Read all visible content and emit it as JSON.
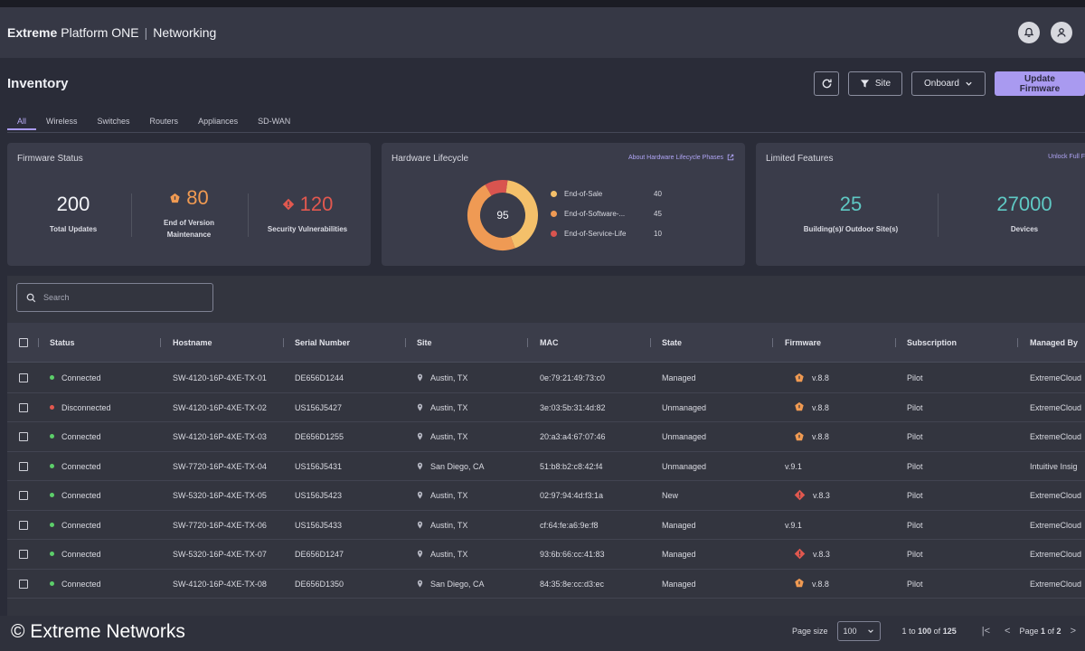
{
  "app": {
    "brand_bold": "Extreme",
    "brand_rest": "Platform ONE",
    "section": "Networking"
  },
  "page": {
    "title": "Inventory"
  },
  "toolbar": {
    "site_label": "Site",
    "onboard_label": "Onboard",
    "update_label": "Update Firmware"
  },
  "tabs": [
    "All",
    "Wireless",
    "Switches",
    "Routers",
    "Appliances",
    "SD-WAN"
  ],
  "firmware_status": {
    "title": "Firmware Status",
    "total_value": "200",
    "total_label": "Total Updates",
    "eovm_value": "80",
    "eovm_label_1": "End of Version",
    "eovm_label_2": "Maintenance",
    "vuln_value": "120",
    "vuln_label": "Security Vulnerabilities"
  },
  "hardware_lifecycle": {
    "title": "Hardware Lifecycle",
    "link": "About Hardware Lifecycle Phases",
    "center": "95",
    "items": [
      {
        "label": "End-of-Sale",
        "value": "40",
        "color": "#f4c06a"
      },
      {
        "label": "End-of-Software-...",
        "value": "45",
        "color": "#ef9a54"
      },
      {
        "label": "End-of-Service-Life",
        "value": "10",
        "color": "#d9544f"
      }
    ]
  },
  "limited_features": {
    "title": "Limited Features",
    "link": "Unlock Full F",
    "sites_value": "25",
    "sites_label": "Building(s)/ Outdoor Site(s)",
    "devices_value": "27000",
    "devices_label": "Devices"
  },
  "search": {
    "placeholder": "Search"
  },
  "columns": [
    "Status",
    "Hostname",
    "Serial Number",
    "Site",
    "MAC",
    "State",
    "Firmware",
    "Subscription",
    "Managed By"
  ],
  "colors": {
    "connected": "#5ccf6a",
    "disconnected": "#e2584f",
    "eovm": "#f09a52",
    "vuln": "#e2584f",
    "accent": "#a99af0"
  },
  "rows": [
    {
      "status": "Connected",
      "hostname": "SW-4120-16P-4XE-TX-01",
      "serial": "DE656D1244",
      "site": "Austin, TX",
      "mac": "0e:79:21:49:73:c0",
      "state": "Managed",
      "fw": "v.8.8",
      "fw_icon": "eovm-icon",
      "subscription": "Pilot",
      "managed": "ExtremeCloud"
    },
    {
      "status": "Disconnected",
      "hostname": "SW-4120-16P-4XE-TX-02",
      "serial": "US156J5427",
      "site": "Austin, TX",
      "mac": "3e:03:5b:31:4d:82",
      "state": "Unmanaged",
      "fw": "v.8.8",
      "fw_icon": "eovm-icon",
      "subscription": "Pilot",
      "managed": "ExtremeCloud"
    },
    {
      "status": "Connected",
      "hostname": "SW-4120-16P-4XE-TX-03",
      "serial": "DE656D1255",
      "site": "Austin, TX",
      "mac": "20:a3:a4:67:07:46",
      "state": "Unmanaged",
      "fw": "v.8.8",
      "fw_icon": "eovm-icon",
      "subscription": "Pilot",
      "managed": "ExtremeCloud"
    },
    {
      "status": "Connected",
      "hostname": "SW-7720-16P-4XE-TX-04",
      "serial": "US156J5431",
      "site": "San Diego, CA",
      "mac": "51:b8:b2:c8:42:f4",
      "state": "Unmanaged",
      "fw": "v.9.1",
      "fw_icon": "",
      "subscription": "Pilot",
      "managed": "Intuitive Insig"
    },
    {
      "status": "Connected",
      "hostname": "SW-5320-16P-4XE-TX-05",
      "serial": "US156J5423",
      "site": "Austin, TX",
      "mac": "02:97:94:4d:f3:1a",
      "state": "New",
      "fw": "v.8.3",
      "fw_icon": "vuln-icon",
      "subscription": "Pilot",
      "managed": "ExtremeCloud"
    },
    {
      "status": "Connected",
      "hostname": "SW-7720-16P-4XE-TX-06",
      "serial": "US156J5433",
      "site": "Austin, TX",
      "mac": "cf:64:fe:a6:9e:f8",
      "state": "Managed",
      "fw": "v.9.1",
      "fw_icon": "",
      "subscription": "Pilot",
      "managed": "ExtremeCloud"
    },
    {
      "status": "Connected",
      "hostname": "SW-5320-16P-4XE-TX-07",
      "serial": "DE656D1247",
      "site": "Austin, TX",
      "mac": "93:6b:66:cc:41:83",
      "state": "Managed",
      "fw": "v.8.3",
      "fw_icon": "vuln-icon",
      "subscription": "Pilot",
      "managed": "ExtremeCloud"
    },
    {
      "status": "Connected",
      "hostname": "SW-4120-16P-4XE-TX-08",
      "serial": "DE656D1350",
      "site": "San Diego, CA",
      "mac": "84:35:8e:cc:d3:ec",
      "state": "Managed",
      "fw": "v.8.8",
      "fw_icon": "eovm-icon",
      "subscription": "Pilot",
      "managed": "ExtremeCloud"
    }
  ],
  "footer": {
    "copyright": "© Extreme Networks",
    "page_size_label": "Page size",
    "page_size": "100",
    "range_from": "1",
    "range_to_word": "to",
    "range_to": "100",
    "range_of_word": "of",
    "total": "125",
    "page_word": "Page",
    "page_current": "1",
    "page_of_word": "of",
    "page_total": "2"
  }
}
